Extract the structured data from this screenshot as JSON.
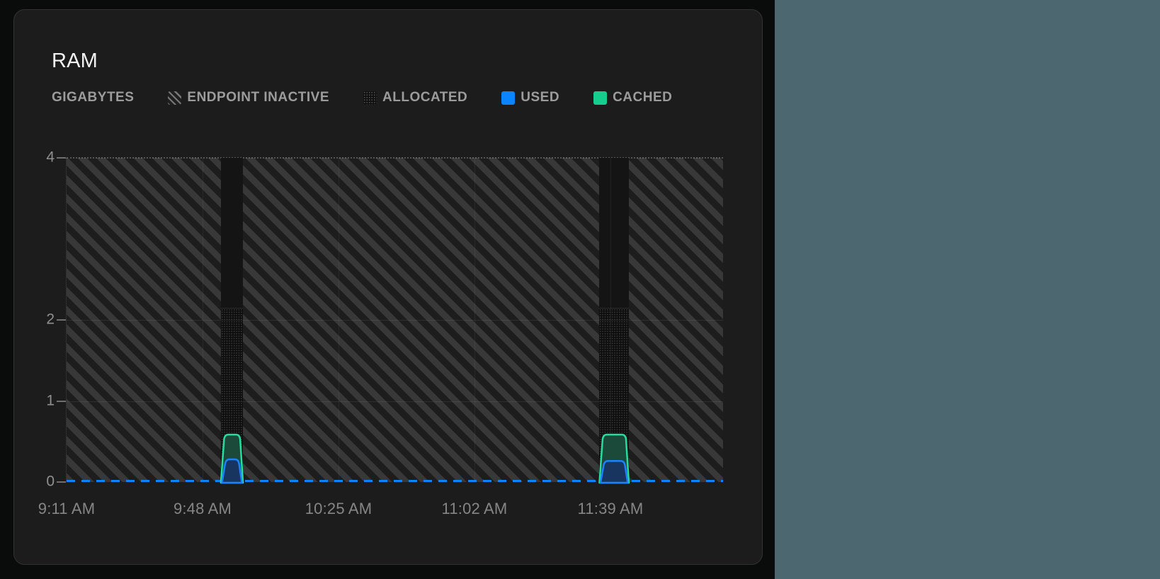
{
  "page": {
    "background_color": "#0a0b0b",
    "right_region_color": "#4c6770"
  },
  "card": {
    "title": "RAM",
    "background_color": "#1c1c1c",
    "border_color": "#323232"
  },
  "legend": {
    "unit_label": "GIGABYTES",
    "items": [
      {
        "label": "ENDPOINT INACTIVE",
        "swatch": "hatch",
        "color": ""
      },
      {
        "label": "ALLOCATED",
        "swatch": "dots",
        "color": ""
      },
      {
        "label": "USED",
        "swatch": "solid",
        "color": "#0a84ff"
      },
      {
        "label": "CACHED",
        "swatch": "solid",
        "color": "#15ce8e"
      }
    ]
  },
  "chart_data": {
    "type": "area",
    "title": "RAM",
    "ylabel": "GIGABYTES",
    "ylim": [
      0,
      4
    ],
    "y_tick_values": [
      4,
      2,
      1,
      0
    ],
    "y_gridline_values": [
      2,
      1
    ],
    "x_tick_labels": [
      "9:11 AM",
      "9:48 AM",
      "10:25 AM",
      "11:02 AM",
      "11:39 AM"
    ],
    "x_tick_interval_minutes": 37,
    "x_axis_start": "9:11 AM",
    "x_axis_total_minutes": 178,
    "legend_position": "top",
    "grid": "faint horizontal and vertical lines",
    "zero_line": {
      "value": 0,
      "style": "dashed",
      "color": "#0a84ff"
    },
    "endpoint_inactive": {
      "style": "diagonal-hatch",
      "note": "hatched area fills full height (0-4 GB) whenever endpoint is inactive",
      "inactive_ranges_minutes": [
        [
          0,
          42
        ],
        [
          48,
          145
        ],
        [
          153,
          178
        ]
      ]
    },
    "active_windows": [
      {
        "start_label": "9:53 AM",
        "end_label": "9:59 AM",
        "start_min": 42,
        "end_min": 48,
        "allocated_gb": 2.15,
        "used_gb": 0.28,
        "cached_stack_top_gb": 0.585
      },
      {
        "start_label": "11:36 AM",
        "end_label": "11:44 AM",
        "start_min": 145,
        "end_min": 153,
        "allocated_gb": 2.15,
        "used_gb": 0.26,
        "cached_stack_top_gb": 0.585
      }
    ],
    "series_colors": {
      "used_stroke": "#1c82ff",
      "used_fill": "#17355f",
      "cached_stroke": "#26dd9e",
      "cached_fill": "#1b4a3b",
      "allocated_texture": "black with fine gray dots",
      "hatch_stripe": "#383838",
      "hatch_background": "#1d1d1d"
    }
  }
}
